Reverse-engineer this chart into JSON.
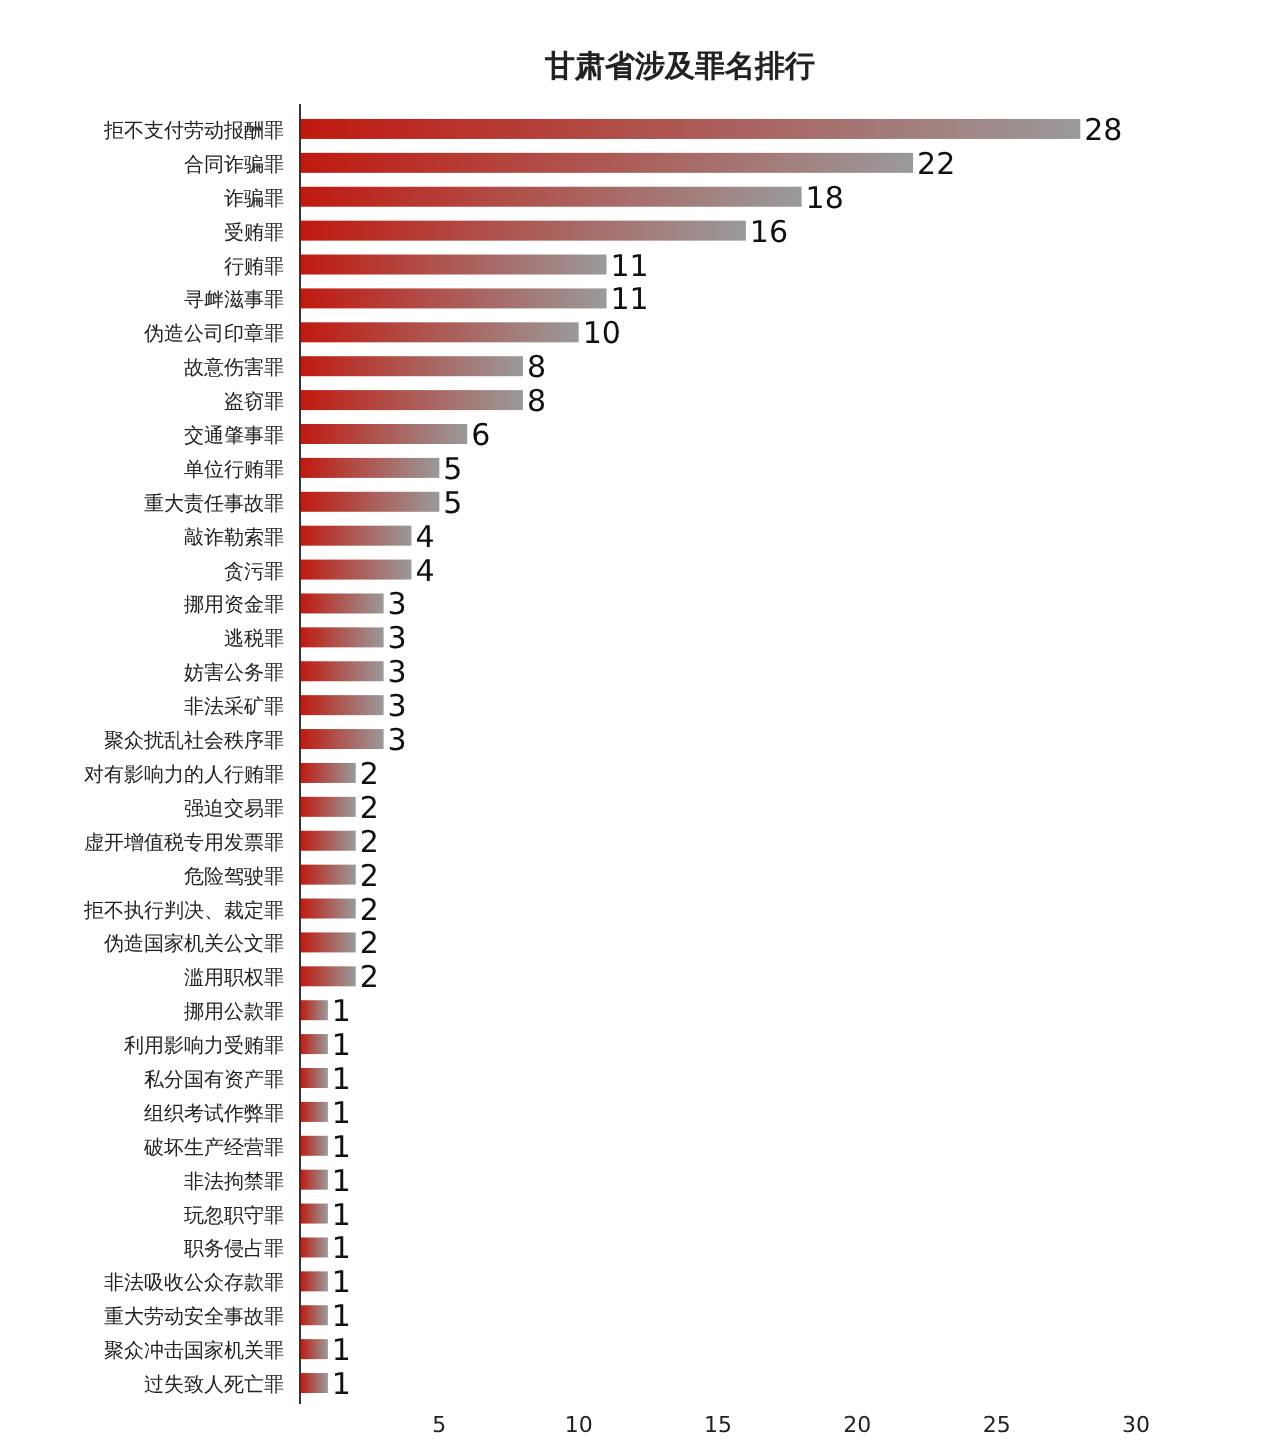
{
  "chart_data": {
    "type": "bar",
    "orientation": "horizontal",
    "title": "甘肃省涉及罪名排行",
    "categories": [
      "拒不支付劳动报酬罪",
      "合同诈骗罪",
      "诈骗罪",
      "受贿罪",
      "行贿罪",
      "寻衅滋事罪",
      "伪造公司印章罪",
      "故意伤害罪",
      "盗窃罪",
      "交通肇事罪",
      "单位行贿罪",
      "重大责任事故罪",
      "敲诈勒索罪",
      "贪污罪",
      "挪用资金罪",
      "逃税罪",
      "妨害公务罪",
      "非法采矿罪",
      "聚众扰乱社会秩序罪",
      "对有影响力的人行贿罪",
      "强迫交易罪",
      "虚开增值税专用发票罪",
      "危险驾驶罪",
      "拒不执行判决、裁定罪",
      "伪造国家机关公文罪",
      "滥用职权罪",
      "挪用公款罪",
      "利用影响力受贿罪",
      "私分国有资产罪",
      "组织考试作弊罪",
      "破坏生产经营罪",
      "非法拘禁罪",
      "玩忽职守罪",
      "职务侵占罪",
      "非法吸收公众存款罪",
      "重大劳动安全事故罪",
      "聚众冲击国家机关罪",
      "过失致人死亡罪"
    ],
    "values": [
      28,
      22,
      18,
      16,
      11,
      11,
      10,
      8,
      8,
      6,
      5,
      5,
      4,
      4,
      3,
      3,
      3,
      3,
      3,
      2,
      2,
      2,
      2,
      2,
      2,
      2,
      1,
      1,
      1,
      1,
      1,
      1,
      1,
      1,
      1,
      1,
      1,
      1
    ],
    "color": "#c0190f",
    "data_labels": true,
    "xlim": [
      0,
      30
    ],
    "xticks": [
      5,
      10,
      15,
      20,
      25,
      30
    ]
  }
}
